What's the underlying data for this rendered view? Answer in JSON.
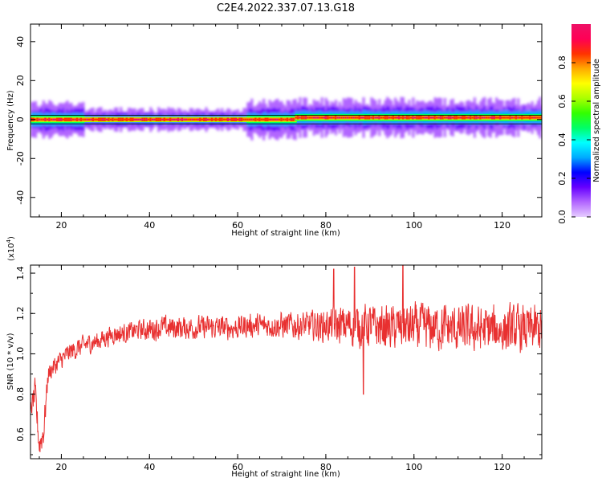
{
  "title": "C2E4.2022.337.07.13.G18",
  "chart_data": [
    {
      "type": "heatmap",
      "title": "C2E4.2022.337.07.13.G18",
      "xlabel": "Height of straight line (km)",
      "ylabel": "Frequency (Hz)",
      "xlim": [
        13,
        129
      ],
      "ylim": [
        -50,
        49
      ],
      "x_ticks": [
        "20",
        "40",
        "60",
        "80",
        "100",
        "120"
      ],
      "y_ticks": [
        "-40",
        "-20",
        "0",
        "20",
        "40"
      ],
      "band_segments": [
        {
          "x0": 13,
          "x1": 73,
          "freq": 0,
          "max_amplitude": 1.0
        },
        {
          "x0": 73,
          "x1": 129,
          "freq": 1,
          "max_amplitude": 1.0
        }
      ],
      "colorbar": {
        "label": "Normalized spectral amplitude",
        "ticks": [
          "0.0",
          "0.2",
          "0.4",
          "0.6",
          "0.8"
        ],
        "range": [
          0,
          1
        ],
        "colormap": [
          "#e6ccff",
          "#b266ff",
          "#6600ff",
          "#0000ff",
          "#00aaff",
          "#00ffff",
          "#00ff66",
          "#33ff00",
          "#aaff00",
          "#ffff00",
          "#ffaa00",
          "#ff3300",
          "#ff0055",
          "#ee1166"
        ]
      },
      "grid": false
    },
    {
      "type": "line",
      "xlabel": "Height of straight line (km)",
      "ylabel": "SNR (10 * v/v)",
      "scale_label": "(x10",
      "scale_exponent": "4",
      "xlim": [
        13,
        129
      ],
      "ylim": [
        0.48,
        1.44
      ],
      "x_ticks": [
        "20",
        "40",
        "60",
        "80",
        "100",
        "120"
      ],
      "y_ticks": [
        "0.6",
        "0.8",
        "1.0",
        "1.2",
        "1.4"
      ],
      "line_color": "#e83030",
      "series": [
        {
          "x": [
            13,
            14,
            15,
            16,
            17,
            18,
            19,
            20,
            22,
            24,
            26,
            28,
            30,
            32,
            34,
            36,
            38,
            40,
            42,
            44,
            46,
            48,
            50,
            52,
            54,
            56,
            58,
            60,
            62,
            64,
            66,
            68,
            70,
            72,
            74,
            76,
            78,
            80,
            82,
            84,
            86,
            88,
            90,
            92,
            94,
            96,
            98,
            100,
            102,
            104,
            106,
            108,
            110,
            112,
            114,
            116,
            118,
            120,
            122,
            124,
            126,
            128,
            129
          ],
          "values": [
            0.72,
            0.8,
            0.55,
            0.62,
            0.9,
            0.93,
            0.95,
            0.97,
            1.01,
            1.03,
            1.05,
            1.06,
            1.08,
            1.1,
            1.1,
            1.11,
            1.12,
            1.12,
            1.13,
            1.13,
            1.13,
            1.13,
            1.13,
            1.13,
            1.13,
            1.13,
            1.13,
            1.13,
            1.14,
            1.14,
            1.14,
            1.14,
            1.14,
            1.14,
            1.14,
            1.14,
            1.14,
            1.14,
            1.14,
            1.14,
            1.14,
            1.14,
            1.14,
            1.13,
            1.13,
            1.13,
            1.13,
            1.13,
            1.13,
            1.13,
            1.13,
            1.13,
            1.12,
            1.12,
            1.12,
            1.12,
            1.12,
            1.12,
            1.12,
            1.12,
            1.12,
            1.12,
            1.12
          ],
          "noise_amplitude": [
            0.04,
            0.08,
            0.08,
            0.08,
            0.05,
            0.05,
            0.05,
            0.05,
            0.05,
            0.05,
            0.05,
            0.05,
            0.05,
            0.05,
            0.05,
            0.05,
            0.05,
            0.06,
            0.06,
            0.06,
            0.06,
            0.06,
            0.06,
            0.06,
            0.06,
            0.06,
            0.06,
            0.06,
            0.06,
            0.06,
            0.06,
            0.06,
            0.07,
            0.07,
            0.07,
            0.07,
            0.08,
            0.08,
            0.09,
            0.1,
            0.11,
            0.11,
            0.11,
            0.11,
            0.11,
            0.11,
            0.12,
            0.12,
            0.12,
            0.12,
            0.12,
            0.12,
            0.12,
            0.12,
            0.12,
            0.12,
            0.12,
            0.12,
            0.12,
            0.12,
            0.12,
            0.12,
            0.12
          ],
          "spikes": [
            {
              "x": 86.5,
              "value": 1.43
            },
            {
              "x": 97.5,
              "value": 1.44
            },
            {
              "x": 81.8,
              "value": 1.42
            },
            {
              "x": 88.5,
              "value": 0.8
            }
          ]
        }
      ],
      "grid": false
    }
  ]
}
